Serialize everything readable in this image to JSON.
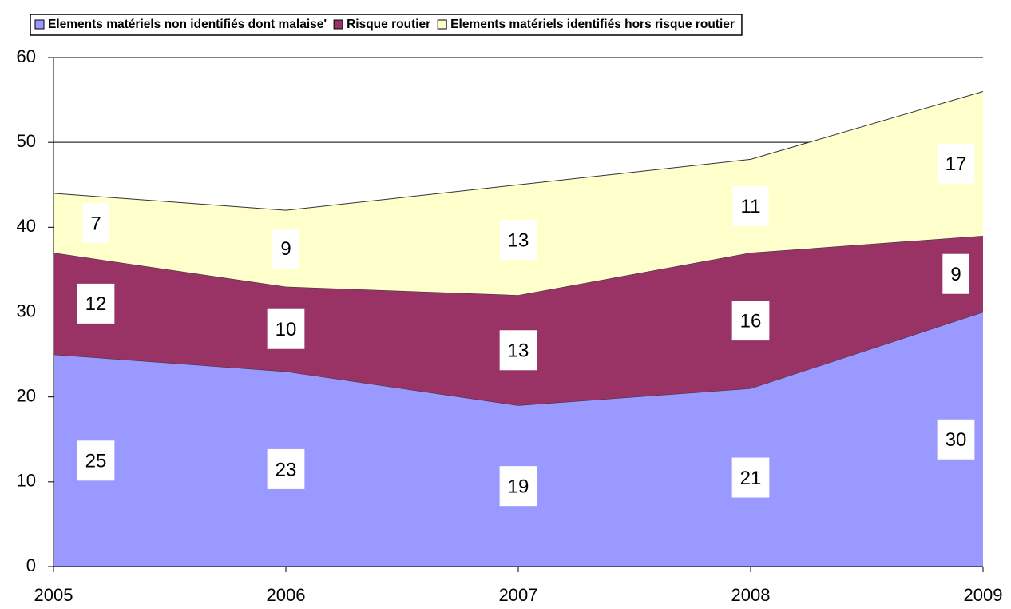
{
  "chart_data": {
    "type": "stacked-area",
    "categories": [
      "2005",
      "2006",
      "2007",
      "2008",
      "2009"
    ],
    "series": [
      {
        "name": "Elements matériels non identifiés dont malaise'",
        "color": "#9999ff",
        "values": [
          25,
          23,
          19,
          21,
          30
        ]
      },
      {
        "name": "Risque routier",
        "color": "#993366",
        "values": [
          12,
          10,
          13,
          16,
          9
        ]
      },
      {
        "name": "Elements matériels identifiés hors risque routier",
        "color": "#ffffcc",
        "values": [
          7,
          9,
          13,
          11,
          17
        ]
      }
    ],
    "ylim": [
      0,
      60
    ],
    "yticks": [
      0,
      10,
      20,
      30,
      40,
      50,
      60
    ],
    "grid": true,
    "legend": "top"
  }
}
